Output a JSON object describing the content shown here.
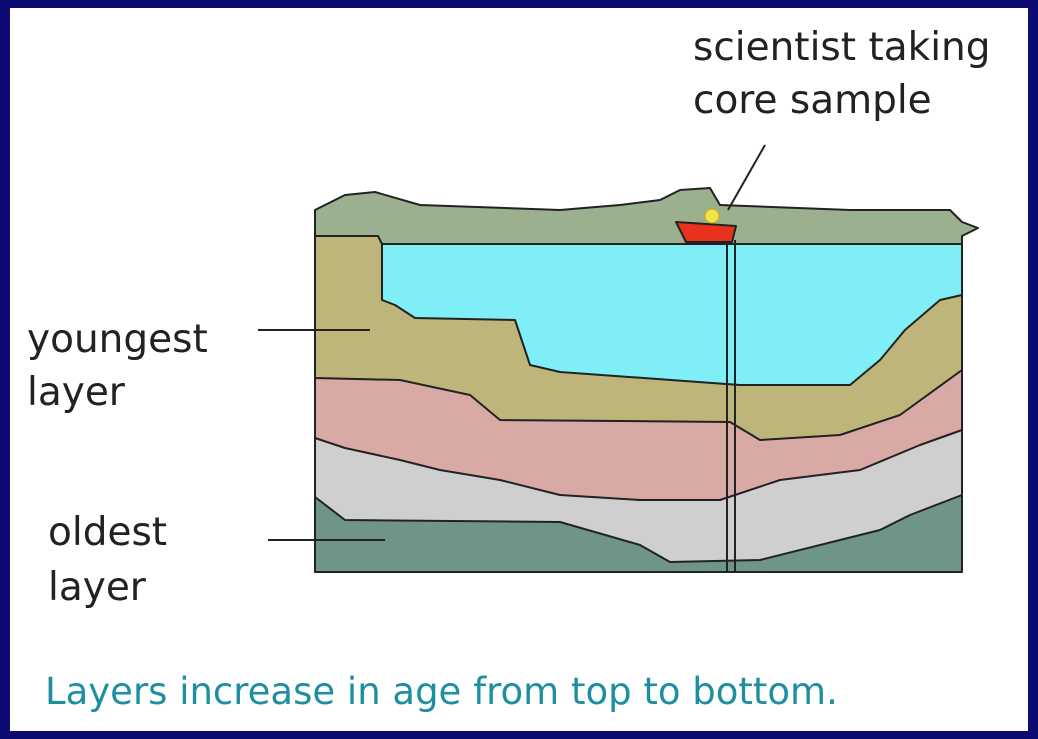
{
  "annotations": [
    {
      "lines": [
        "scientist taking",
        "core sample"
      ]
    },
    {
      "lines": [
        "youngest",
        "layer"
      ]
    },
    {
      "lines": [
        "oldest",
        "layer"
      ]
    }
  ],
  "caption": "Layers increase in age from top to bottom."
}
